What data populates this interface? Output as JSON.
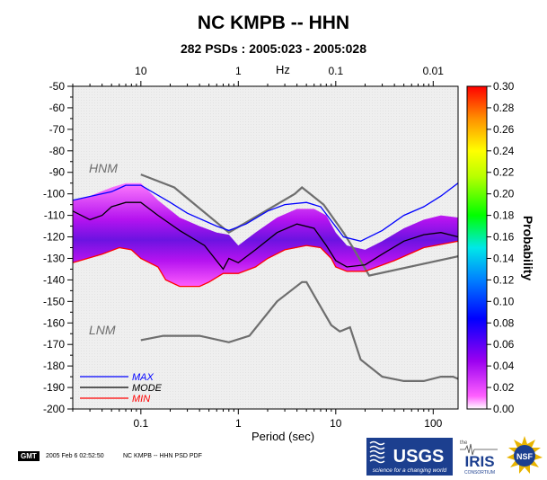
{
  "title": "NC KMPB -- HHN",
  "subtitle": "282 PSDs : 2005:023 - 2005:028",
  "chart_data": {
    "type": "heatmap",
    "xlabel": "Period (sec)",
    "x_scale": "log",
    "xlim": [
      0.02,
      180
    ],
    "x_ticks": [
      "0.1",
      "1",
      "10",
      "100"
    ],
    "top_axis_label": "Hz",
    "top_ticks": [
      "10",
      "1",
      "0.1",
      "0.01"
    ],
    "ylim": [
      -200,
      -50
    ],
    "y_ticks": [
      "-50",
      "-60",
      "-70",
      "-80",
      "-90",
      "-100",
      "-110",
      "-120",
      "-130",
      "-140",
      "-150",
      "-160",
      "-170",
      "-180",
      "-190",
      "-200"
    ],
    "colorbar": {
      "label": "Probability",
      "range": [
        0,
        0.3
      ],
      "ticks": [
        "0.00",
        "0.02",
        "0.04",
        "0.06",
        "0.08",
        "0.10",
        "0.12",
        "0.14",
        "0.16",
        "0.18",
        "0.20",
        "0.22",
        "0.24",
        "0.26",
        "0.28",
        "0.30"
      ]
    },
    "reference_lines": [
      {
        "name": "HNM",
        "color": "#6e6e6e",
        "points": [
          [
            0.1,
            -91
          ],
          [
            0.22,
            -97
          ],
          [
            0.8,
            -118
          ],
          [
            3.8,
            -100
          ],
          [
            4.5,
            -97
          ],
          [
            7.5,
            -105
          ],
          [
            12,
            -118
          ],
          [
            15,
            -125
          ],
          [
            22,
            -138
          ],
          [
            180,
            -129
          ]
        ]
      },
      {
        "name": "LNM",
        "color": "#6e6e6e",
        "points": [
          [
            0.1,
            -168
          ],
          [
            0.17,
            -166
          ],
          [
            0.4,
            -166
          ],
          [
            0.8,
            -169
          ],
          [
            1.3,
            -166
          ],
          [
            2.5,
            -150
          ],
          [
            4.5,
            -141
          ],
          [
            5,
            -141
          ],
          [
            6.5,
            -150
          ],
          [
            9,
            -161
          ],
          [
            11,
            -164
          ],
          [
            14,
            -162
          ],
          [
            18,
            -177
          ],
          [
            30,
            -185
          ],
          [
            50,
            -187
          ],
          [
            80,
            -187
          ],
          [
            120,
            -185
          ],
          [
            160,
            -185
          ],
          [
            180,
            -186
          ]
        ]
      }
    ],
    "series": [
      {
        "name": "MAX",
        "color": "#0000ff",
        "points": [
          [
            0.02,
            -103
          ],
          [
            0.05,
            -99
          ],
          [
            0.07,
            -96
          ],
          [
            0.1,
            -96
          ],
          [
            0.2,
            -104
          ],
          [
            0.3,
            -109
          ],
          [
            0.6,
            -115
          ],
          [
            0.8,
            -117
          ],
          [
            1.2,
            -114
          ],
          [
            2,
            -108
          ],
          [
            3,
            -105
          ],
          [
            5,
            -104
          ],
          [
            7,
            -106
          ],
          [
            12,
            -120
          ],
          [
            18,
            -122
          ],
          [
            30,
            -117
          ],
          [
            50,
            -110
          ],
          [
            80,
            -106
          ],
          [
            120,
            -101
          ],
          [
            180,
            -95
          ]
        ]
      },
      {
        "name": "MODE",
        "color": "#000000",
        "points": [
          [
            0.02,
            -108
          ],
          [
            0.03,
            -112
          ],
          [
            0.04,
            -110
          ],
          [
            0.05,
            -106
          ],
          [
            0.07,
            -104
          ],
          [
            0.1,
            -104
          ],
          [
            0.15,
            -110
          ],
          [
            0.25,
            -117
          ],
          [
            0.45,
            -124
          ],
          [
            0.7,
            -135
          ],
          [
            0.8,
            -130
          ],
          [
            1,
            -132
          ],
          [
            1.5,
            -126
          ],
          [
            2.5,
            -118
          ],
          [
            4,
            -114
          ],
          [
            6,
            -116
          ],
          [
            8,
            -124
          ],
          [
            10,
            -131
          ],
          [
            13,
            -134
          ],
          [
            20,
            -133
          ],
          [
            30,
            -128
          ],
          [
            50,
            -122
          ],
          [
            80,
            -119
          ],
          [
            120,
            -118
          ],
          [
            180,
            -120
          ]
        ]
      },
      {
        "name": "MIN",
        "color": "#ff0000",
        "points": [
          [
            0.02,
            -132
          ],
          [
            0.04,
            -128
          ],
          [
            0.06,
            -125
          ],
          [
            0.08,
            -126
          ],
          [
            0.1,
            -130
          ],
          [
            0.15,
            -134
          ],
          [
            0.18,
            -140
          ],
          [
            0.25,
            -143
          ],
          [
            0.4,
            -143
          ],
          [
            0.5,
            -141
          ],
          [
            0.7,
            -137
          ],
          [
            1,
            -137
          ],
          [
            1.5,
            -134
          ],
          [
            2,
            -130
          ],
          [
            3,
            -126
          ],
          [
            5,
            -124
          ],
          [
            7,
            -125
          ],
          [
            9,
            -130
          ],
          [
            10,
            -134
          ],
          [
            13,
            -136
          ],
          [
            20,
            -136
          ],
          [
            40,
            -131
          ],
          [
            80,
            -125
          ],
          [
            180,
            -122
          ]
        ]
      }
    ],
    "density_band": {
      "upper": [
        [
          0.02,
          -103
        ],
        [
          0.03,
          -101
        ],
        [
          0.05,
          -97
        ],
        [
          0.07,
          -95
        ],
        [
          0.1,
          -95
        ],
        [
          0.15,
          -103
        ],
        [
          0.25,
          -111
        ],
        [
          0.4,
          -115
        ],
        [
          0.6,
          -118
        ],
        [
          0.8,
          -119
        ],
        [
          1,
          -124
        ],
        [
          1.5,
          -118
        ],
        [
          2.5,
          -111
        ],
        [
          4,
          -107
        ],
        [
          6,
          -107
        ],
        [
          8,
          -110
        ],
        [
          10,
          -118
        ],
        [
          13,
          -124
        ],
        [
          20,
          -126
        ],
        [
          30,
          -122
        ],
        [
          50,
          -116
        ],
        [
          80,
          -112
        ],
        [
          120,
          -110
        ],
        [
          180,
          -111
        ]
      ],
      "lower": [
        [
          0.02,
          -132
        ],
        [
          0.04,
          -128
        ],
        [
          0.06,
          -125
        ],
        [
          0.08,
          -126
        ],
        [
          0.1,
          -130
        ],
        [
          0.15,
          -134
        ],
        [
          0.18,
          -140
        ],
        [
          0.25,
          -143
        ],
        [
          0.4,
          -143
        ],
        [
          0.5,
          -141
        ],
        [
          0.7,
          -137
        ],
        [
          1,
          -137
        ],
        [
          1.5,
          -134
        ],
        [
          2,
          -130
        ],
        [
          3,
          -126
        ],
        [
          5,
          -124
        ],
        [
          7,
          -125
        ],
        [
          9,
          -130
        ],
        [
          10,
          -134
        ],
        [
          13,
          -136
        ],
        [
          20,
          -136
        ],
        [
          40,
          -131
        ],
        [
          80,
          -125
        ],
        [
          180,
          -122
        ]
      ]
    },
    "legend_position": "bottom-left"
  },
  "footer": {
    "gmt_badge": "GMT",
    "date": "2005 Feb  6 02:52:50",
    "caption": "NC KMPB -- HHN PSD PDF"
  },
  "logos": {
    "usgs_name": "USGS",
    "usgs_tagline": "science for a changing world",
    "iris_prefix": "the",
    "iris_name": "IRIS",
    "iris_sub": "CONSORTIUM",
    "nsf_name": "NSF"
  }
}
